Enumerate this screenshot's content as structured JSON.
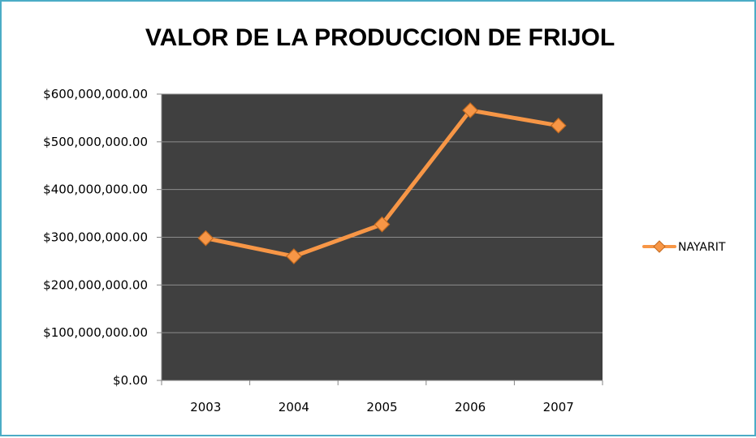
{
  "chart_data": {
    "type": "line",
    "title": "VALOR DE LA PRODUCCION  DE FRIJOL",
    "categories": [
      "2003",
      "2004",
      "2005",
      "2006",
      "2007"
    ],
    "series": [
      {
        "name": "NAYARIT",
        "values": [
          298000000,
          260000000,
          327000000,
          566000000,
          534000000
        ]
      }
    ],
    "ylim": [
      0,
      600000000
    ],
    "yticks": [
      0,
      100000000,
      200000000,
      300000000,
      400000000,
      500000000,
      600000000
    ],
    "ytick_labels": [
      "$0.00",
      "$100,000,000.00",
      "$200,000,000.00",
      "$300,000,000.00",
      "$400,000,000.00",
      "$500,000,000.00",
      "$600,000,000.00"
    ],
    "grid": true,
    "legend_position": "right",
    "colors": {
      "plot_background": "#404040",
      "gridline": "#8c8c8c",
      "series_line": "#f79646",
      "marker_fill": "#f79646",
      "marker_stroke": "#c46a1f",
      "border": "#4bacc6"
    }
  }
}
